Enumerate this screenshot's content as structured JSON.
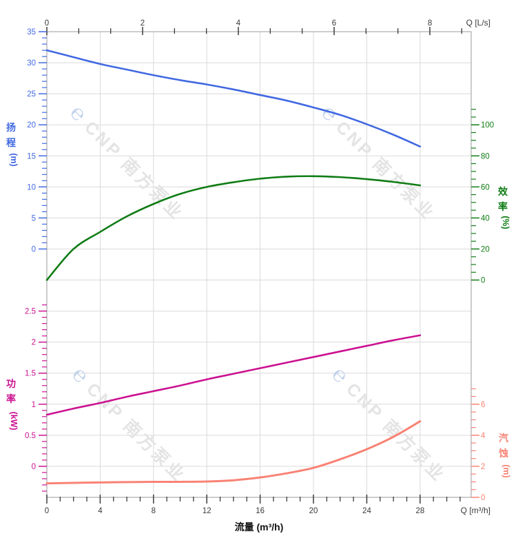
{
  "chart_data": {
    "type": "line",
    "grid": true,
    "x_bottom": {
      "axis_label": "流量 (m³/h)",
      "unit_label": "Q [m³/h]",
      "major_ticks": [
        0,
        4,
        8,
        12,
        16,
        20,
        24,
        28
      ],
      "minor_step": 1,
      "minor_max": 31,
      "max": 31.83,
      "color": "#3a3a3a"
    },
    "x_top": {
      "unit_label": "Q [L/s]",
      "major_ticks": [
        0,
        2,
        4,
        6,
        8
      ],
      "minor_step": 0.66667,
      "minor_max": 8.667,
      "max": 8.863,
      "color": "#3a3a3a"
    },
    "y_axes": [
      {
        "id": "head",
        "title": "扬程",
        "unit": "(m)",
        "side": "left",
        "color": "#4169e1",
        "major_ticks": [
          35,
          30,
          25,
          20,
          15,
          10,
          5,
          0
        ],
        "minor_step": 1,
        "minor_min": 0,
        "minor_max": 35,
        "units_per_row": 5,
        "anchor_value": 35,
        "anchor_row": 0
      },
      {
        "id": "efficiency",
        "title": "效率",
        "unit": "(%)",
        "side": "right",
        "color": "#0f7c14",
        "major_ticks": [
          100,
          80,
          60,
          40,
          20,
          0
        ],
        "minor_step": 5,
        "minor_min": 0,
        "minor_max": 110,
        "units_per_row": 20,
        "anchor_value": 0,
        "anchor_row": 8
      },
      {
        "id": "power",
        "title": "功率",
        "unit": "(kW)",
        "side": "left",
        "color": "#cb1190",
        "major_ticks": [
          2.5,
          2,
          1.5,
          1,
          0.5,
          0
        ],
        "minor_step": 0.1,
        "minor_min": -0.4,
        "minor_max": 2.6,
        "units_per_row": 0.5,
        "anchor_value": 0,
        "anchor_row": 14
      },
      {
        "id": "npsh",
        "title": "汽蚀",
        "unit": "(m)",
        "side": "right",
        "color": "#f98274",
        "major_ticks": [
          6,
          4,
          2,
          0
        ],
        "minor_step": 0.5,
        "minor_min": 0,
        "minor_max": 7,
        "units_per_row": 2,
        "anchor_value": 0,
        "anchor_row": 15
      }
    ],
    "series": [
      {
        "id": "head-curve",
        "axis": "head",
        "color": "#4169e1",
        "width": 2.6,
        "points": [
          [
            0,
            32
          ],
          [
            2,
            30.9
          ],
          [
            4,
            29.8
          ],
          [
            6,
            28.9
          ],
          [
            8,
            28
          ],
          [
            10,
            27.2
          ],
          [
            12,
            26.5
          ],
          [
            14,
            25.7
          ],
          [
            16,
            24.8
          ],
          [
            18,
            23.9
          ],
          [
            20,
            22.8
          ],
          [
            22,
            21.6
          ],
          [
            24,
            20.1
          ],
          [
            26,
            18.4
          ],
          [
            28,
            16.5
          ]
        ]
      },
      {
        "id": "efficiency-curve",
        "axis": "efficiency",
        "color": "#0f7c14",
        "width": 2.6,
        "points": [
          [
            0,
            0
          ],
          [
            2,
            20
          ],
          [
            4,
            31
          ],
          [
            6,
            41
          ],
          [
            8,
            49
          ],
          [
            10,
            55.5
          ],
          [
            12,
            60
          ],
          [
            14,
            63
          ],
          [
            16,
            65.3
          ],
          [
            18,
            66.6
          ],
          [
            20,
            66.9
          ],
          [
            22,
            66.3
          ],
          [
            24,
            65
          ],
          [
            26,
            63.2
          ],
          [
            28,
            61
          ]
        ]
      },
      {
        "id": "power-curve",
        "axis": "power",
        "color": "#cb1190",
        "width": 2.6,
        "points": [
          [
            0,
            0.83
          ],
          [
            2,
            0.93
          ],
          [
            4,
            1.02
          ],
          [
            6,
            1.12
          ],
          [
            8,
            1.21
          ],
          [
            10,
            1.3
          ],
          [
            12,
            1.4
          ],
          [
            14,
            1.49
          ],
          [
            16,
            1.58
          ],
          [
            18,
            1.67
          ],
          [
            20,
            1.76
          ],
          [
            22,
            1.85
          ],
          [
            24,
            1.94
          ],
          [
            26,
            2.03
          ],
          [
            28,
            2.11
          ]
        ]
      },
      {
        "id": "npsh-curve",
        "axis": "npsh",
        "color": "#f98274",
        "width": 3,
        "points": [
          [
            0,
            0.9
          ],
          [
            2,
            0.93
          ],
          [
            4,
            0.96
          ],
          [
            6,
            0.98
          ],
          [
            8,
            1
          ],
          [
            10,
            1
          ],
          [
            12,
            1.02
          ],
          [
            14,
            1.1
          ],
          [
            16,
            1.28
          ],
          [
            18,
            1.55
          ],
          [
            20,
            1.9
          ],
          [
            22,
            2.45
          ],
          [
            24,
            3.1
          ],
          [
            26,
            3.9
          ],
          [
            28,
            4.9
          ]
        ]
      }
    ]
  },
  "watermark": {
    "logo_char": "℮",
    "text": "CNP 南方泵业",
    "angle": 45,
    "logo_color": "#c2d3eb",
    "text_color": "#e4e4e4"
  },
  "style": {
    "grid_color": "#d9d9d9",
    "border_color": "#b0b0b0"
  }
}
